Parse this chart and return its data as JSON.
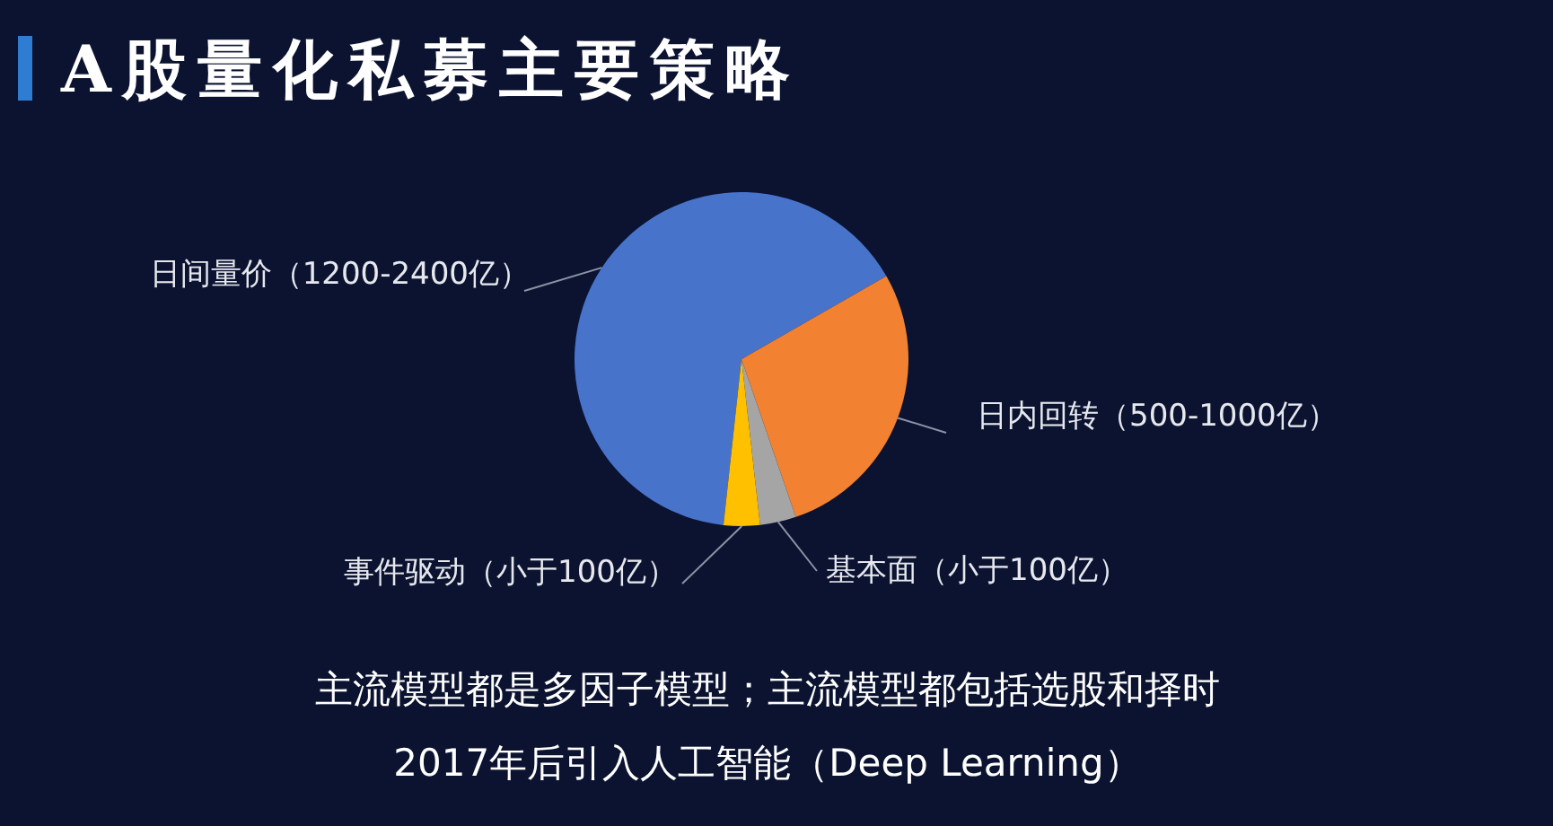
{
  "chart_data": {
    "type": "pie",
    "title": "A股量化私募主要策略",
    "categories": [
      "日间量价（1200-2400亿）",
      "日内回转（500-1000亿）",
      "基本面（小于100亿）",
      "事件驱动（小于100亿）"
    ],
    "values": [
      65,
      28,
      3.5,
      3.5
    ],
    "colors": [
      "#4873cb",
      "#f28131",
      "#a5a5a5",
      "#ffc000"
    ],
    "annotations": [
      "主流模型都是多因子模型；主流模型都包括选股和择时",
      "2017年后引入人工智能（Deep Learning）"
    ]
  }
}
